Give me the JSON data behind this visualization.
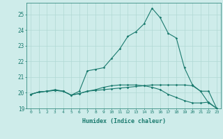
{
  "xlabel": "Humidex (Indice chaleur)",
  "x": [
    0,
    1,
    2,
    3,
    4,
    5,
    6,
    7,
    8,
    9,
    10,
    11,
    12,
    13,
    14,
    15,
    16,
    17,
    18,
    19,
    20,
    21,
    22,
    23
  ],
  "line1": [
    19.9,
    20.05,
    20.1,
    20.15,
    20.1,
    19.85,
    19.95,
    20.1,
    20.15,
    20.2,
    20.25,
    20.3,
    20.35,
    20.4,
    20.45,
    20.5,
    20.5,
    20.5,
    20.5,
    20.5,
    20.45,
    20.1,
    20.1,
    19.0
  ],
  "line2": [
    19.9,
    20.05,
    20.1,
    20.15,
    20.1,
    19.85,
    19.95,
    20.1,
    20.2,
    20.35,
    20.45,
    20.5,
    20.5,
    20.5,
    20.45,
    20.35,
    20.2,
    19.9,
    19.7,
    19.5,
    19.35,
    19.35,
    19.4,
    19.0
  ],
  "line3": [
    19.9,
    20.05,
    20.1,
    20.2,
    20.1,
    19.85,
    20.1,
    21.4,
    21.5,
    21.6,
    22.2,
    22.8,
    23.6,
    23.9,
    24.4,
    25.4,
    24.8,
    23.8,
    23.5,
    21.6,
    20.5,
    20.1,
    19.35,
    19.0
  ],
  "color": "#1a7a6e",
  "bg_color": "#ceecea",
  "grid_color": "#b0d8d4",
  "ylim": [
    19.0,
    25.75
  ],
  "yticks": [
    19,
    20,
    21,
    22,
    23,
    24,
    25
  ],
  "xticks": [
    0,
    1,
    2,
    3,
    4,
    5,
    6,
    7,
    8,
    9,
    10,
    11,
    12,
    13,
    14,
    15,
    16,
    17,
    18,
    19,
    20,
    21,
    22,
    23
  ]
}
